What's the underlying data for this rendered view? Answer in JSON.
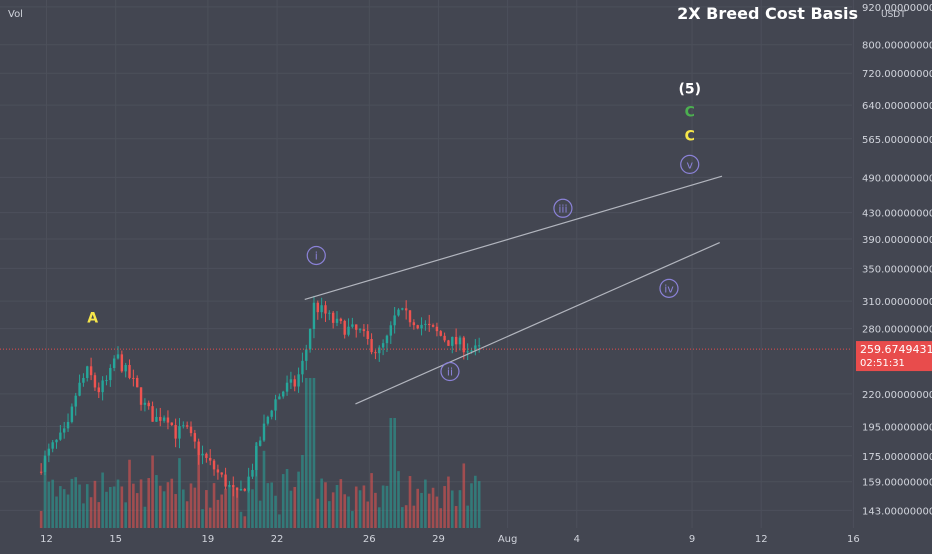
{
  "header": {
    "vol_label": "Vol",
    "title": "2X Breed Cost Basis",
    "currency_label": "USDT"
  },
  "price_tag": {
    "value": "259.67494310",
    "countdown": "02:51:31"
  },
  "colors": {
    "background": "#434651",
    "grid": "#4c505b",
    "axis_text": "#d1d4dc",
    "up": "#26a69a",
    "down": "#ef5350",
    "wave_label": "#8b82d8",
    "label_yellow": "#f6e64a",
    "label_green": "#4caf50",
    "label_white": "#ffffff",
    "trendline": "#b2b5be",
    "price_tag": "#e84c4c"
  },
  "chart_data": {
    "type": "candlestick",
    "y_scale": "log",
    "ylim": [
      136,
      930
    ],
    "y_ticks": [
      {
        "value": 920,
        "label": "920.00000000"
      },
      {
        "value": 800,
        "label": "800.00000000"
      },
      {
        "value": 720,
        "label": "720.00000000"
      },
      {
        "value": 640,
        "label": "640.00000000"
      },
      {
        "value": 565,
        "label": "565.00000000"
      },
      {
        "value": 490,
        "label": "490.00000000"
      },
      {
        "value": 430,
        "label": "430.00000000"
      },
      {
        "value": 390,
        "label": "390.00000000"
      },
      {
        "value": 350,
        "label": "350.00000000"
      },
      {
        "value": 310,
        "label": "310.00000000"
      },
      {
        "value": 280,
        "label": "280.00000000"
      },
      {
        "value": 220,
        "label": "220.00000000"
      },
      {
        "value": 195,
        "label": "195.00000000"
      },
      {
        "value": 175,
        "label": "175.00000000"
      },
      {
        "value": 159,
        "label": "159.00000000"
      },
      {
        "value": 143,
        "label": "143.00000000"
      }
    ],
    "x_ticks": [
      {
        "day": 12,
        "label": "12"
      },
      {
        "day": 15,
        "label": "15"
      },
      {
        "day": 19,
        "label": "19"
      },
      {
        "day": 22,
        "label": "22"
      },
      {
        "day": 26,
        "label": "26"
      },
      {
        "day": 29,
        "label": "29"
      },
      {
        "day": 32,
        "label": "Aug"
      },
      {
        "day": 35,
        "label": "4"
      },
      {
        "day": 40,
        "label": "9"
      },
      {
        "day": 43,
        "label": "12"
      },
      {
        "day": 47,
        "label": "16"
      }
    ],
    "xlim": [
      11.5,
      48.5
    ],
    "last_price": 259.67,
    "price_path": [
      {
        "day": 11.6,
        "price": 165
      },
      {
        "day": 12.2,
        "price": 180
      },
      {
        "day": 12.9,
        "price": 192
      },
      {
        "day": 13.3,
        "price": 222
      },
      {
        "day": 13.8,
        "price": 240
      },
      {
        "day": 14.2,
        "price": 222
      },
      {
        "day": 14.7,
        "price": 232
      },
      {
        "day": 15.0,
        "price": 255
      },
      {
        "day": 15.3,
        "price": 243
      },
      {
        "day": 15.8,
        "price": 228
      },
      {
        "day": 16.2,
        "price": 212
      },
      {
        "day": 16.7,
        "price": 200
      },
      {
        "day": 17.2,
        "price": 205
      },
      {
        "day": 17.6,
        "price": 190
      },
      {
        "day": 18.0,
        "price": 194
      },
      {
        "day": 18.6,
        "price": 178
      },
      {
        "day": 19.2,
        "price": 168
      },
      {
        "day": 19.8,
        "price": 158
      },
      {
        "day": 20.3,
        "price": 150
      },
      {
        "day": 20.8,
        "price": 162
      },
      {
        "day": 21.3,
        "price": 188
      },
      {
        "day": 21.8,
        "price": 212
      },
      {
        "day": 22.4,
        "price": 226
      },
      {
        "day": 22.8,
        "price": 228
      },
      {
        "day": 23.2,
        "price": 252
      },
      {
        "day": 23.6,
        "price": 305
      },
      {
        "day": 24.0,
        "price": 298
      },
      {
        "day": 24.5,
        "price": 286
      },
      {
        "day": 25.0,
        "price": 280
      },
      {
        "day": 25.6,
        "price": 276
      },
      {
        "day": 26.0,
        "price": 265
      },
      {
        "day": 26.4,
        "price": 256
      },
      {
        "day": 26.8,
        "price": 270
      },
      {
        "day": 27.2,
        "price": 298
      },
      {
        "day": 27.7,
        "price": 292
      },
      {
        "day": 28.3,
        "price": 284
      },
      {
        "day": 28.9,
        "price": 276
      },
      {
        "day": 29.4,
        "price": 268
      },
      {
        "day": 30.0,
        "price": 264
      },
      {
        "day": 30.5,
        "price": 258
      },
      {
        "day": 30.9,
        "price": 259.7
      }
    ],
    "volume_ylim": [
      0,
      100
    ],
    "trendlines": [
      {
        "name": "upper",
        "from": {
          "day": 23.2,
          "price": 312
        },
        "to": {
          "day": 41.3,
          "price": 492
        }
      },
      {
        "name": "lower",
        "from": {
          "day": 25.4,
          "price": 212
        },
        "to": {
          "day": 41.2,
          "price": 385
        }
      }
    ],
    "annotations": [
      {
        "text": "A",
        "day": 14.0,
        "price": 292,
        "style": "yellow"
      },
      {
        "text": "i",
        "day": 23.7,
        "price": 367,
        "style": "circle"
      },
      {
        "text": "ii",
        "day": 29.5,
        "price": 239,
        "style": "circle"
      },
      {
        "text": "iii",
        "day": 34.4,
        "price": 437,
        "style": "circle"
      },
      {
        "text": "iv",
        "day": 39.0,
        "price": 325,
        "style": "circle"
      },
      {
        "text": "v",
        "day": 39.9,
        "price": 514,
        "style": "circle"
      },
      {
        "text": "C",
        "day": 39.9,
        "price": 572,
        "style": "yellow"
      },
      {
        "text": "C",
        "day": 39.9,
        "price": 625,
        "style": "green"
      },
      {
        "text": "(5)",
        "day": 39.9,
        "price": 680,
        "style": "white"
      }
    ]
  }
}
